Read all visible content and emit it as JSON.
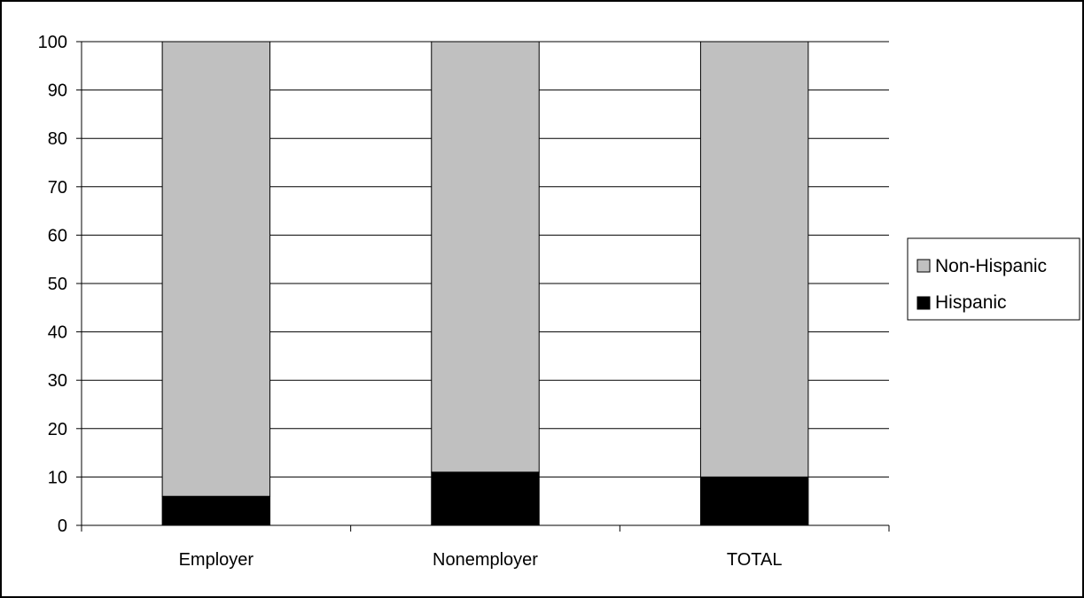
{
  "chart_data": {
    "type": "bar",
    "stacked": true,
    "title": "",
    "xlabel": "",
    "ylabel": "",
    "categories": [
      "Employer",
      "Nonemployer",
      "TOTAL"
    ],
    "series": [
      {
        "name": "Hispanic",
        "values": [
          6,
          11,
          10
        ],
        "color": "#000000"
      },
      {
        "name": "Non-Hispanic",
        "values": [
          94,
          89,
          90
        ],
        "color": "#c0c0c0"
      }
    ],
    "ylim": [
      0,
      100
    ],
    "yticks": [
      "0",
      "10",
      "20",
      "30",
      "40",
      "50",
      "60",
      "70",
      "80",
      "90",
      "100"
    ],
    "grid": true,
    "legend": {
      "position": "right",
      "entries": [
        "Non-Hispanic",
        "Hispanic"
      ]
    }
  }
}
